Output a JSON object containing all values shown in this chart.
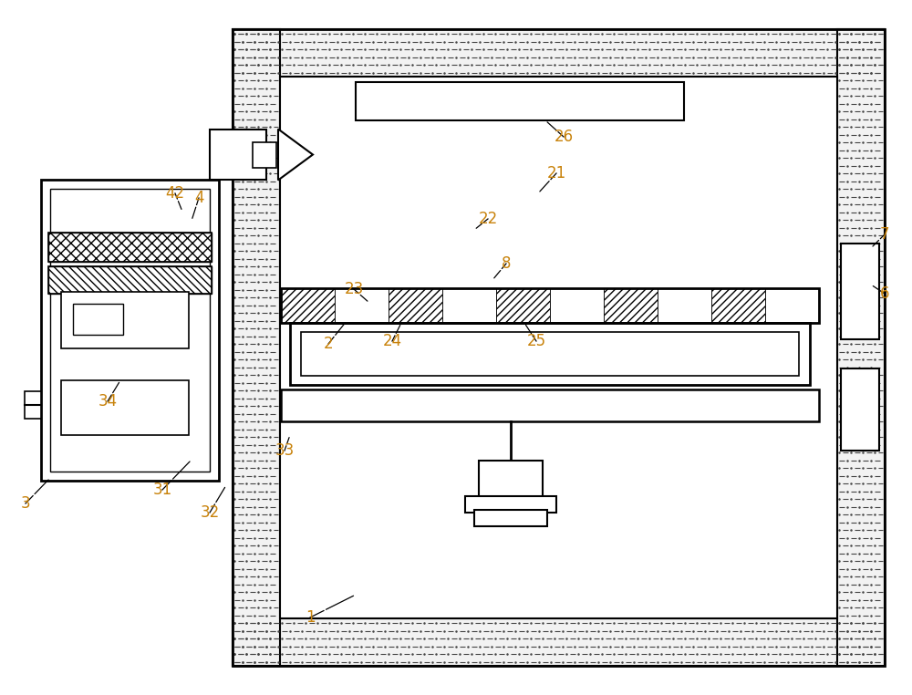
{
  "bg_color": "#ffffff",
  "line_color": "#000000",
  "label_color": "#c8820a",
  "fig_width": 10.0,
  "fig_height": 7.62,
  "dpi": 100
}
